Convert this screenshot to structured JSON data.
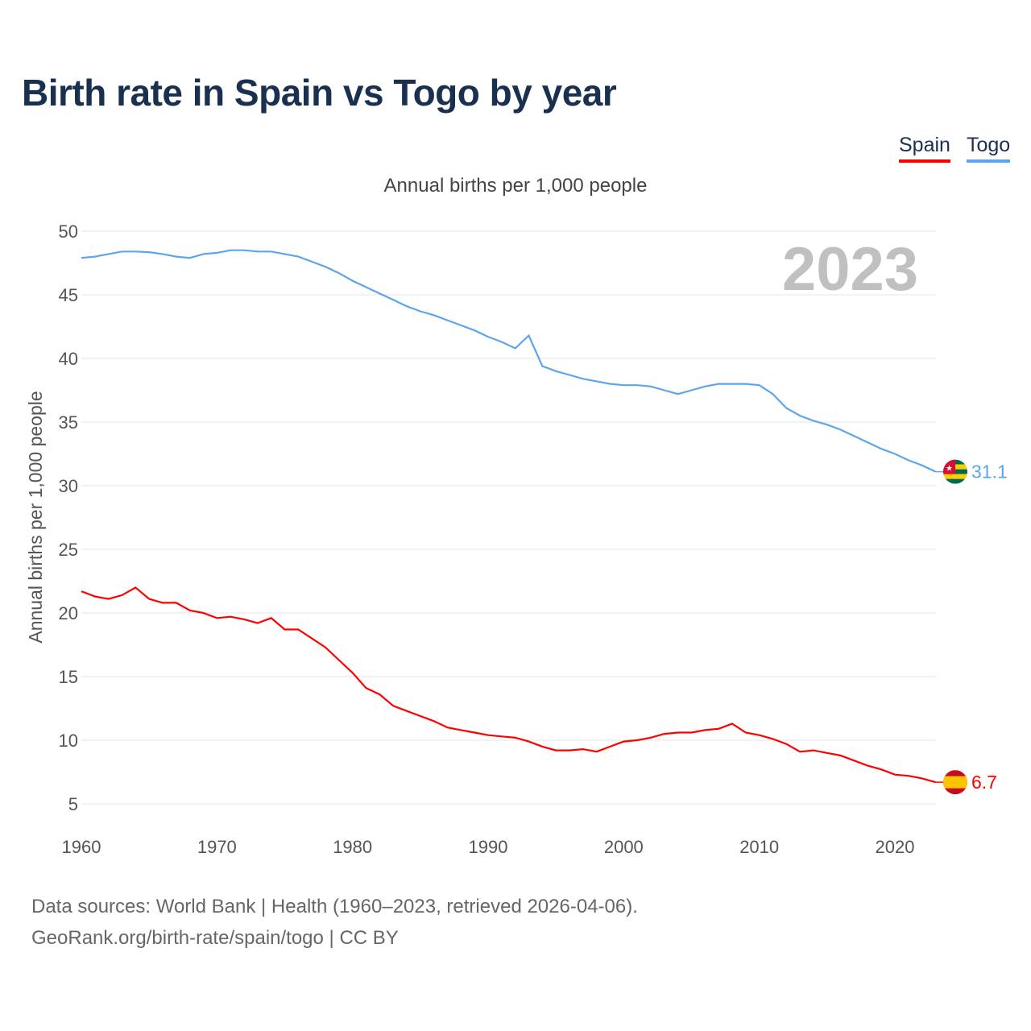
{
  "title": "Birth rate in Spain vs Togo by year",
  "legend": [
    {
      "label": "Spain",
      "color": "#ff0000"
    },
    {
      "label": "Togo",
      "color": "#5da5ea"
    }
  ],
  "subtitle": "Annual births per 1,000 people",
  "source_line1": "Data sources: World Bank | Health (1960–2023, retrieved 2026-04-06).",
  "source_line2": "GeoRank.org/birth-rate/spain/togo | CC BY",
  "chart_data": {
    "type": "line",
    "title": "Birth rate in Spain vs Togo by year",
    "xlabel": "",
    "ylabel": "Annual births per 1,000 people",
    "xlim": [
      1960,
      2023
    ],
    "ylim": [
      5,
      50
    ],
    "xticks": [
      1960,
      1970,
      1980,
      1990,
      2000,
      2010,
      2020
    ],
    "yticks": [
      5,
      10,
      15,
      20,
      25,
      30,
      35,
      40,
      45,
      50
    ],
    "grid": true,
    "legend_position": "top-right",
    "year_label": "2023",
    "x_start": 1960,
    "series": [
      {
        "name": "Spain",
        "color": "#ff0000",
        "end_label": "6.7",
        "flag": "spain-flag",
        "values": [
          21.7,
          21.3,
          21.1,
          21.4,
          22.0,
          21.1,
          20.8,
          20.8,
          20.2,
          20.0,
          19.6,
          19.7,
          19.5,
          19.2,
          19.6,
          18.7,
          18.7,
          18.0,
          17.3,
          16.3,
          15.3,
          14.1,
          13.6,
          12.7,
          12.3,
          11.9,
          11.5,
          11.0,
          10.8,
          10.6,
          10.4,
          10.3,
          10.2,
          9.9,
          9.5,
          9.2,
          9.2,
          9.3,
          9.1,
          9.5,
          9.9,
          10.0,
          10.2,
          10.5,
          10.6,
          10.6,
          10.8,
          10.9,
          11.3,
          10.6,
          10.4,
          10.1,
          9.7,
          9.1,
          9.2,
          9.0,
          8.8,
          8.4,
          8.0,
          7.7,
          7.3,
          7.2,
          7.0,
          6.7
        ]
      },
      {
        "name": "Togo",
        "color": "#5da5ea",
        "end_label": "31.1",
        "flag": "togo-flag",
        "values": [
          47.9,
          48.0,
          48.2,
          48.4,
          48.4,
          48.35,
          48.2,
          48.0,
          47.9,
          48.2,
          48.3,
          48.5,
          48.5,
          48.4,
          48.4,
          48.2,
          48.0,
          47.6,
          47.2,
          46.7,
          46.1,
          45.6,
          45.1,
          44.6,
          44.1,
          43.7,
          43.4,
          43.0,
          42.6,
          42.2,
          41.7,
          41.3,
          40.8,
          41.8,
          39.4,
          39.0,
          38.7,
          38.4,
          38.2,
          38.0,
          37.9,
          37.9,
          37.8,
          37.5,
          37.2,
          37.5,
          37.8,
          38.0,
          38.0,
          38.0,
          37.9,
          37.2,
          36.1,
          35.5,
          35.1,
          34.8,
          34.4,
          33.9,
          33.4,
          32.9,
          32.5,
          32.0,
          31.6,
          31.1
        ]
      }
    ]
  }
}
